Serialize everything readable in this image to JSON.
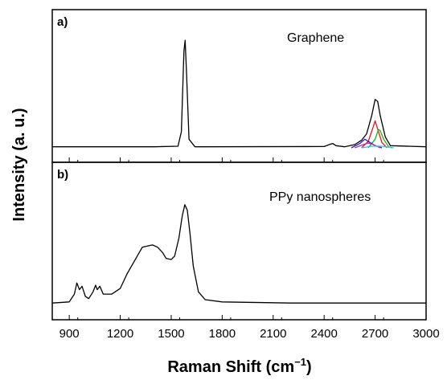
{
  "chart_data": {
    "type": "line",
    "xlabel": "Raman Shift (cm",
    "xlabel_unit_sup": "−1",
    "xlabel_close": ")",
    "ylabel": "Intensity (a. u.)",
    "xlim": [
      800,
      3000
    ],
    "xticks": [
      900,
      1200,
      1500,
      1800,
      2100,
      2400,
      2700,
      3000
    ],
    "colors": {
      "main": "#000000",
      "red": "#e8141e",
      "green": "#17b317",
      "blue": "#1c1cd2",
      "cyan": "#1ec8e6",
      "magenta": "#c81ec8"
    },
    "panels": [
      {
        "tag": "a)",
        "title": "Graphene",
        "ylim": [
          0,
          1.15
        ],
        "series": [
          {
            "color": "main",
            "points": [
              [
                800,
                0.01
              ],
              [
                1400,
                0.01
              ],
              [
                1540,
                0.015
              ],
              [
                1560,
                0.15
              ],
              [
                1575,
                0.9
              ],
              [
                1582,
                1.0
              ],
              [
                1590,
                0.7
              ],
              [
                1605,
                0.08
              ],
              [
                1640,
                0.01
              ],
              [
                2400,
                0.012
              ],
              [
                2430,
                0.03
              ],
              [
                2450,
                0.04
              ],
              [
                2470,
                0.02
              ],
              [
                2520,
                0.01
              ],
              [
                2580,
                0.03
              ],
              [
                2620,
                0.07
              ],
              [
                2650,
                0.13
              ],
              [
                2680,
                0.3
              ],
              [
                2700,
                0.45
              ],
              [
                2715,
                0.43
              ],
              [
                2730,
                0.3
              ],
              [
                2760,
                0.1
              ],
              [
                2790,
                0.02
              ],
              [
                3000,
                0.01
              ]
            ]
          },
          {
            "color": "red",
            "points": [
              [
                2620,
                0.0
              ],
              [
                2660,
                0.06
              ],
              [
                2690,
                0.2
              ],
              [
                2700,
                0.25
              ],
              [
                2710,
                0.2
              ],
              [
                2740,
                0.05
              ],
              [
                2770,
                0.0
              ]
            ]
          },
          {
            "color": "green",
            "points": [
              [
                2660,
                0.0
              ],
              [
                2700,
                0.08
              ],
              [
                2720,
                0.17
              ],
              [
                2730,
                0.16
              ],
              [
                2750,
                0.08
              ],
              [
                2780,
                0.01
              ],
              [
                2800,
                0.0
              ]
            ]
          },
          {
            "color": "blue",
            "points": [
              [
                2560,
                0.0
              ],
              [
                2610,
                0.04
              ],
              [
                2640,
                0.08
              ],
              [
                2660,
                0.06
              ],
              [
                2700,
                0.02
              ],
              [
                2740,
                0.0
              ]
            ]
          },
          {
            "color": "magenta",
            "points": [
              [
                2580,
                0.0
              ],
              [
                2630,
                0.03
              ],
              [
                2660,
                0.045
              ],
              [
                2690,
                0.03
              ],
              [
                2730,
                0.0
              ]
            ]
          },
          {
            "color": "cyan",
            "points": [
              [
                2620,
                0.0
              ],
              [
                2680,
                0.015
              ],
              [
                2740,
                0.015
              ],
              [
                2810,
                0.0
              ]
            ]
          }
        ]
      },
      {
        "tag": "b)",
        "title": "PPy nanospheres",
        "ylim": [
          0,
          1.15
        ],
        "series": [
          {
            "color": "main",
            "points": [
              [
                800,
                0.02
              ],
              [
                900,
                0.03
              ],
              [
                930,
                0.1
              ],
              [
                945,
                0.2
              ],
              [
                960,
                0.14
              ],
              [
                975,
                0.17
              ],
              [
                995,
                0.08
              ],
              [
                1015,
                0.06
              ],
              [
                1040,
                0.12
              ],
              [
                1055,
                0.18
              ],
              [
                1065,
                0.14
              ],
              [
                1080,
                0.17
              ],
              [
                1100,
                0.1
              ],
              [
                1150,
                0.1
              ],
              [
                1200,
                0.15
              ],
              [
                1240,
                0.28
              ],
              [
                1270,
                0.36
              ],
              [
                1300,
                0.44
              ],
              [
                1330,
                0.52
              ],
              [
                1360,
                0.53
              ],
              [
                1390,
                0.54
              ],
              [
                1420,
                0.52
              ],
              [
                1450,
                0.47
              ],
              [
                1470,
                0.42
              ],
              [
                1500,
                0.41
              ],
              [
                1520,
                0.44
              ],
              [
                1545,
                0.6
              ],
              [
                1565,
                0.8
              ],
              [
                1580,
                0.9
              ],
              [
                1595,
                0.85
              ],
              [
                1610,
                0.65
              ],
              [
                1630,
                0.35
              ],
              [
                1660,
                0.12
              ],
              [
                1700,
                0.05
              ],
              [
                1800,
                0.03
              ],
              [
                2200,
                0.02
              ],
              [
                3000,
                0.02
              ]
            ]
          }
        ]
      }
    ]
  }
}
